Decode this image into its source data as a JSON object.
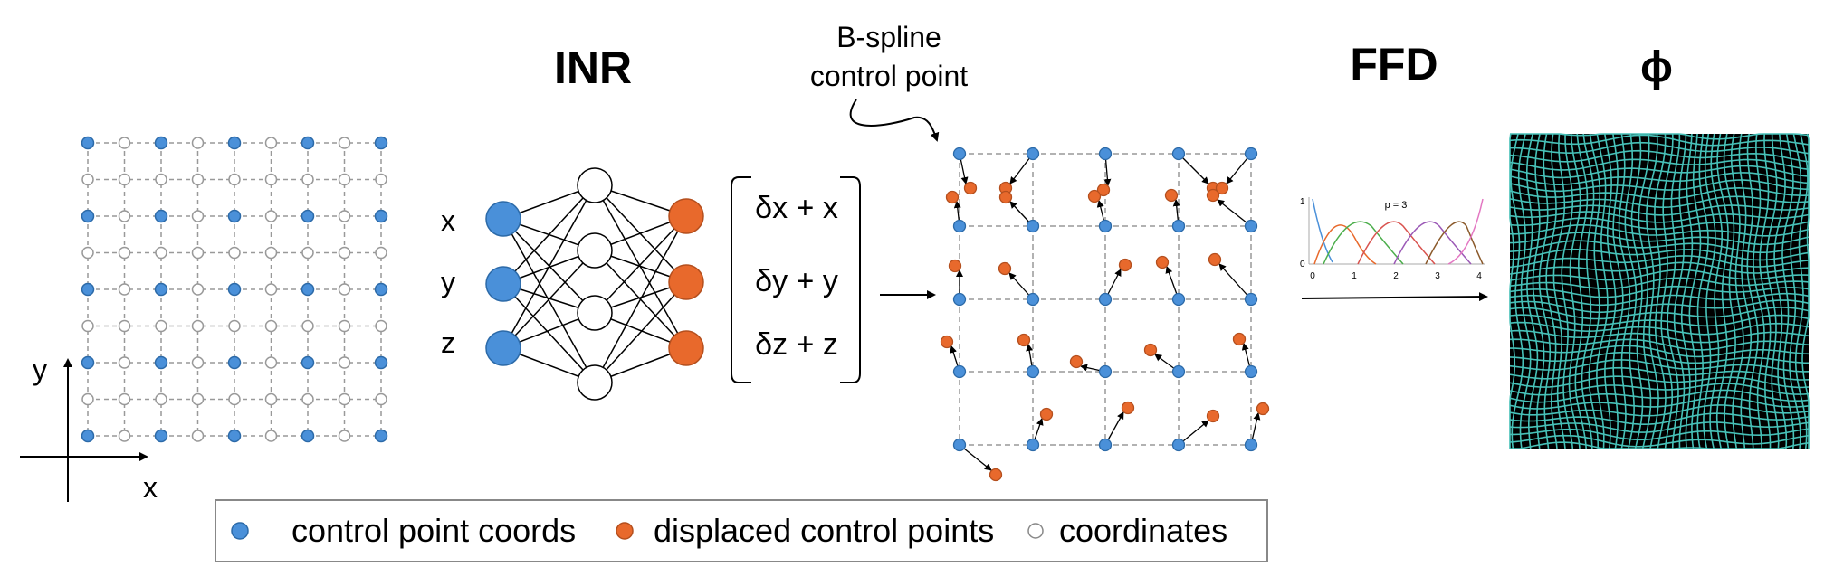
{
  "titles": {
    "inr": "INR",
    "ffd": "FFD",
    "phi": "ϕ"
  },
  "annotation": {
    "line1": "B-spline",
    "line2": "control point"
  },
  "axes": {
    "x": "x",
    "y": "y"
  },
  "inputs": [
    "x",
    "y",
    "z"
  ],
  "outputs": [
    "δx + x",
    "δy + y",
    "δz + z"
  ],
  "basis_plot": {
    "label": "p = 3",
    "y_ticks": [
      "1",
      "0"
    ],
    "x_ticks": [
      "0",
      "1",
      "2",
      "3",
      "4"
    ]
  },
  "legend": {
    "blue": "control point coords",
    "orange": "displaced control points",
    "white": "coordinates"
  },
  "colors": {
    "blue": "#4a90d9",
    "orange": "#e8692c",
    "teal": "#47c1b8",
    "grid_line": "#999999"
  }
}
